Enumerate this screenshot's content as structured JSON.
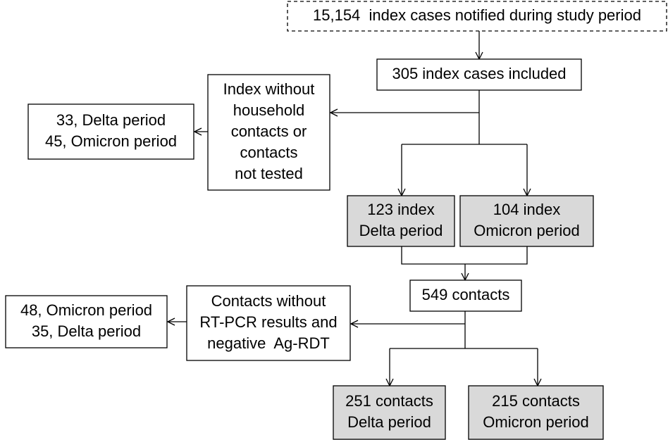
{
  "nodes": [
    {
      "lines": [
        "15,154  index cases notified during study period"
      ]
    },
    {
      "lines": [
        "305 index cases included"
      ]
    },
    {
      "lines": [
        "Index without",
        "household",
        "contacts or",
        "contacts",
        "not tested"
      ]
    },
    {
      "lines": [
        "33, Delta period",
        "45, Omicron period"
      ]
    },
    {
      "lines": [
        "123 index",
        "Delta period"
      ]
    },
    {
      "lines": [
        "104 index",
        "Omicron period"
      ]
    },
    {
      "lines": [
        "549 contacts"
      ]
    },
    {
      "lines": [
        "Contacts without",
        "RT-PCR results and",
        "negative  Ag-RDT"
      ]
    },
    {
      "lines": [
        "48, Omicron period",
        "35, Delta period"
      ]
    },
    {
      "lines": [
        "251 contacts",
        "Delta period"
      ]
    },
    {
      "lines": [
        "215 contacts",
        "Omicron period"
      ]
    }
  ]
}
